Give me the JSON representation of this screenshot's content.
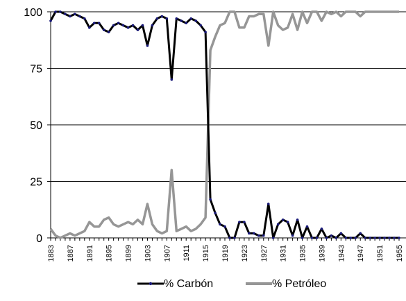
{
  "chart_data": {
    "type": "line",
    "title": "",
    "xlabel": "",
    "ylabel": "",
    "ylim": [
      0,
      100
    ],
    "y_ticks": [
      "0",
      "25",
      "50",
      "75",
      "100"
    ],
    "x_tick_labels": [
      "1883",
      "1887",
      "1891",
      "1895",
      "1899",
      "1903",
      "1907",
      "1911",
      "1915",
      "1919",
      "1923",
      "1927",
      "1931",
      "1935",
      "1939",
      "1943",
      "1947",
      "1951",
      "1955"
    ],
    "x": [
      1883,
      1884,
      1885,
      1886,
      1887,
      1888,
      1889,
      1890,
      1891,
      1892,
      1893,
      1894,
      1895,
      1896,
      1897,
      1898,
      1899,
      1900,
      1901,
      1902,
      1903,
      1904,
      1905,
      1906,
      1907,
      1908,
      1909,
      1910,
      1911,
      1912,
      1913,
      1914,
      1915,
      1916,
      1917,
      1918,
      1919,
      1920,
      1921,
      1922,
      1923,
      1924,
      1925,
      1926,
      1927,
      1928,
      1929,
      1930,
      1931,
      1932,
      1933,
      1934,
      1935,
      1936,
      1937,
      1938,
      1939,
      1940,
      1941,
      1942,
      1943,
      1944,
      1945,
      1946,
      1947,
      1948,
      1949,
      1950,
      1951,
      1952,
      1953,
      1954,
      1955
    ],
    "grid": "horizontal",
    "legend_position": "bottom",
    "series": [
      {
        "name": "% Carbón",
        "color": "#000000",
        "marker_color": "#1a1a7a",
        "values": [
          96,
          100,
          100,
          99,
          98,
          99,
          98,
          97,
          93,
          95,
          95,
          92,
          91,
          94,
          95,
          94,
          93,
          94,
          92,
          94,
          85,
          94,
          97,
          98,
          97,
          70,
          97,
          96,
          95,
          97,
          96,
          94,
          91,
          17,
          11,
          6,
          5,
          0,
          0,
          7,
          7,
          2,
          2,
          1,
          1,
          15,
          0,
          6,
          8,
          7,
          1,
          8,
          0,
          5,
          0,
          0,
          4,
          0,
          1,
          0,
          2,
          0,
          0,
          0,
          2,
          0,
          0,
          0,
          0,
          0,
          0,
          0,
          0
        ]
      },
      {
        "name": "% Petróleo",
        "color": "#969696",
        "values": [
          4,
          1,
          0,
          1,
          2,
          1,
          2,
          3,
          7,
          5,
          5,
          8,
          9,
          6,
          5,
          6,
          7,
          6,
          8,
          6,
          15,
          6,
          3,
          2,
          3,
          30,
          3,
          4,
          5,
          3,
          4,
          6,
          9,
          83,
          89,
          94,
          95,
          100,
          100,
          93,
          93,
          98,
          98,
          99,
          99,
          85,
          100,
          94,
          92,
          93,
          99,
          92,
          100,
          95,
          100,
          100,
          96,
          100,
          99,
          100,
          98,
          100,
          100,
          100,
          98,
          100,
          100,
          100,
          100,
          100,
          100,
          100,
          100
        ]
      }
    ]
  }
}
